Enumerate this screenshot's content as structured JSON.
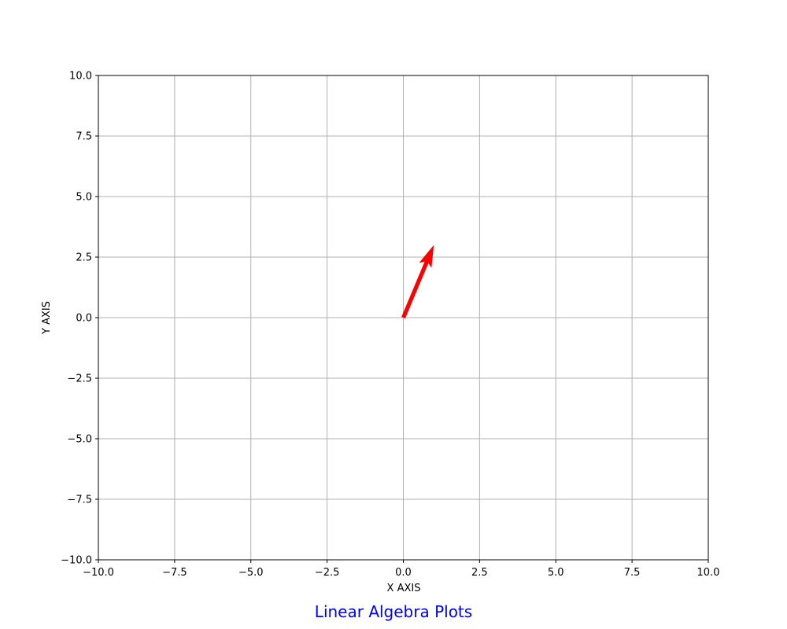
{
  "chart_data": {
    "type": "quiver",
    "title": "",
    "caption": "Linear Algebra Plots",
    "xlabel": "X AXIS",
    "ylabel": "Y AXIS",
    "xlim": [
      -10,
      10
    ],
    "ylim": [
      -10,
      10
    ],
    "xticks": [
      -10,
      -7.5,
      -5,
      -2.5,
      0,
      2.5,
      5,
      7.5,
      10
    ],
    "yticks": [
      -10,
      -7.5,
      -5,
      -2.5,
      0,
      2.5,
      5,
      7.5,
      10
    ],
    "xtick_labels": [
      "−10.0",
      "−7.5",
      "−5.0",
      "−2.5",
      "0.0",
      "2.5",
      "5.0",
      "7.5",
      "10.0"
    ],
    "ytick_labels": [
      "−10.0",
      "−7.5",
      "−5.0",
      "−2.5",
      "0.0",
      "2.5",
      "5.0",
      "7.5",
      "10.0"
    ],
    "grid": true,
    "grid_color": "#b0b0b0",
    "caption_color": "#0000ff",
    "vectors": [
      {
        "origin": [
          0,
          0
        ],
        "components": [
          1,
          3
        ],
        "color": "#ff0000"
      }
    ]
  }
}
